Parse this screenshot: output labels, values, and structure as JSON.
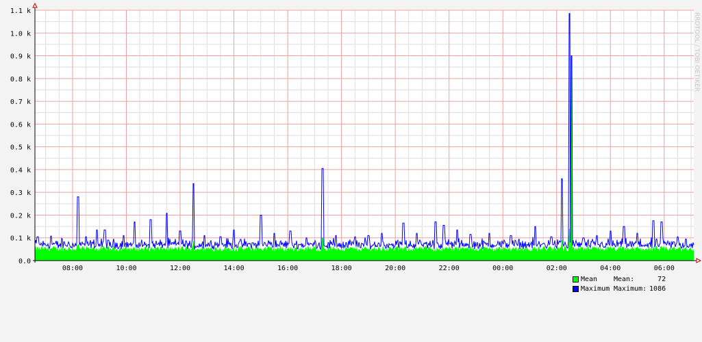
{
  "watermark": "RRDTOOL / TOBI OETIKER",
  "chart_data": {
    "type": "area",
    "y_ticks": [
      "0.0",
      "0.1 k",
      "0.2 k",
      "0.3 k",
      "0.4 k",
      "0.5 k",
      "0.6 k",
      "0.7 k",
      "0.8 k",
      "0.9 k",
      "1.0 k",
      "1.1 k"
    ],
    "x_ticks": [
      "08:00",
      "10:00",
      "12:00",
      "14:00",
      "16:00",
      "18:00",
      "20:00",
      "22:00",
      "00:00",
      "02:00",
      "04:00",
      "06:00"
    ],
    "ylim": [
      0,
      1100
    ],
    "grid": true,
    "x_start_hour": 6.6,
    "x_end_hour": 31.1,
    "baseline": 72,
    "spikes": [
      [
        6.7,
        105
      ],
      [
        7.2,
        108
      ],
      [
        7.6,
        95
      ],
      [
        8.2,
        280
      ],
      [
        8.5,
        105
      ],
      [
        8.9,
        135
      ],
      [
        9.2,
        135
      ],
      [
        9.9,
        110
      ],
      [
        10.3,
        170
      ],
      [
        10.9,
        180
      ],
      [
        11.5,
        208
      ],
      [
        12.0,
        130
      ],
      [
        12.5,
        338
      ],
      [
        12.9,
        110
      ],
      [
        13.5,
        105
      ],
      [
        14.0,
        135
      ],
      [
        15.0,
        200
      ],
      [
        15.5,
        120
      ],
      [
        16.1,
        130
      ],
      [
        16.7,
        100
      ],
      [
        17.3,
        405
      ],
      [
        17.8,
        110
      ],
      [
        18.5,
        105
      ],
      [
        19.0,
        110
      ],
      [
        19.5,
        120
      ],
      [
        20.3,
        165
      ],
      [
        20.8,
        120
      ],
      [
        21.5,
        170
      ],
      [
        21.8,
        155
      ],
      [
        22.3,
        135
      ],
      [
        22.8,
        115
      ],
      [
        23.5,
        120
      ],
      [
        24.3,
        110
      ],
      [
        25.2,
        150
      ],
      [
        25.8,
        105
      ],
      [
        26.2,
        360
      ],
      [
        26.48,
        1086
      ],
      [
        26.55,
        900
      ],
      [
        27.0,
        100
      ],
      [
        27.5,
        110
      ],
      [
        28.0,
        130
      ],
      [
        28.5,
        150
      ],
      [
        29.0,
        120
      ],
      [
        29.6,
        175
      ],
      [
        29.9,
        170
      ],
      [
        30.5,
        105
      ],
      [
        30.8,
        95
      ]
    ],
    "series": [
      {
        "name": "Mean",
        "color": "#00ff00",
        "legend_stat_label": "Mean:",
        "legend_value": "72"
      },
      {
        "name": "Maximum",
        "color": "#0000ff",
        "legend_stat_label": "Maximum:",
        "legend_value": "1086"
      }
    ]
  }
}
